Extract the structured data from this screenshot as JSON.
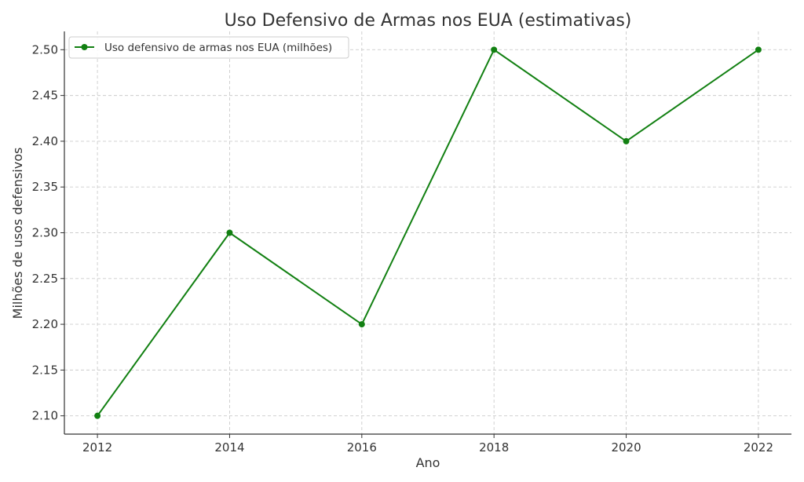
{
  "chart_data": {
    "type": "line",
    "title": "Uso Defensivo de Armas nos EUA (estimativas)",
    "xlabel": "Ano",
    "ylabel": "Milhões de usos defensivos",
    "x": [
      2012,
      2014,
      2016,
      2018,
      2020,
      2022
    ],
    "x_ticks": [
      "2012",
      "2014",
      "2016",
      "2018",
      "2020",
      "2022"
    ],
    "y_ticks": [
      "2.10",
      "2.15",
      "2.20",
      "2.25",
      "2.30",
      "2.35",
      "2.40",
      "2.45",
      "2.50"
    ],
    "xlim": [
      2011.5,
      2022.5
    ],
    "ylim": [
      2.08,
      2.52
    ],
    "grid": true,
    "legend_position": "top-left",
    "series": [
      {
        "name": "Uso defensivo de armas nos EUA (milhões)",
        "color": "#128012",
        "marker": "circle",
        "values": [
          2.1,
          2.3,
          2.2,
          2.5,
          2.4,
          2.5
        ]
      }
    ]
  }
}
